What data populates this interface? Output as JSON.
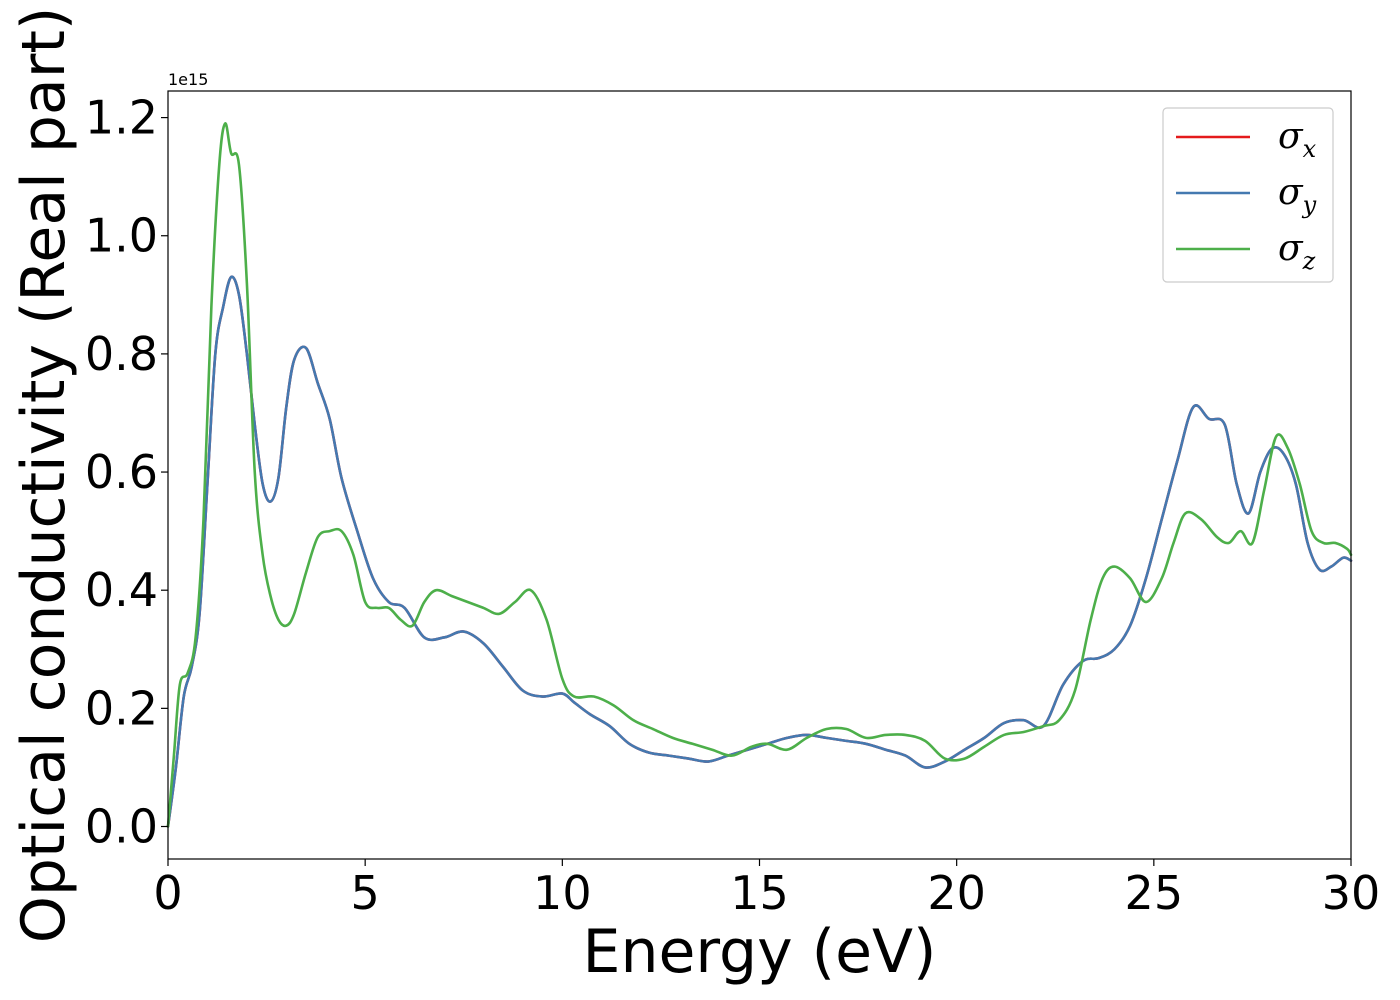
{
  "chart_data": {
    "type": "line",
    "title": "",
    "xlabel": "Energy (eV)",
    "ylabel": "Optical conductivity (Real part)",
    "y_offset_label": "1e15",
    "xlim": [
      0,
      30
    ],
    "ylim": [
      -0.055,
      1.245
    ],
    "xticks": [
      0,
      5,
      10,
      15,
      20,
      25,
      30
    ],
    "xtick_labels": [
      "0",
      "5",
      "10",
      "15",
      "20",
      "25",
      "30"
    ],
    "yticks": [
      0.0,
      0.2,
      0.4,
      0.6,
      0.8,
      1.0,
      1.2
    ],
    "ytick_labels": [
      "0.0",
      "0.2",
      "0.4",
      "0.6",
      "0.8",
      "1.0",
      "1.2"
    ],
    "grid": false,
    "legend_position": "top-right",
    "series": [
      {
        "name": "σx",
        "symbol": "σ",
        "subscript": "x",
        "color": "#e41a1c",
        "x": [
          0,
          0.2,
          0.4,
          0.6,
          0.8,
          1.0,
          1.2,
          1.4,
          1.6,
          1.8,
          2.0,
          2.2,
          2.4,
          2.6,
          2.8,
          3.0,
          3.2,
          3.5,
          3.8,
          4.1,
          4.4,
          4.8,
          5.2,
          5.6,
          6.0,
          6.5,
          7.0,
          7.5,
          8.0,
          8.5,
          9.0,
          9.5,
          10.0,
          10.3,
          10.7,
          11.2,
          11.7,
          12.2,
          12.7,
          13.2,
          13.7,
          14.2,
          14.7,
          15.2,
          15.7,
          16.2,
          16.7,
          17.2,
          17.7,
          18.2,
          18.7,
          19.2,
          19.7,
          20.2,
          20.7,
          21.2,
          21.7,
          22.2,
          22.7,
          23.2,
          23.6,
          24.0,
          24.4,
          24.8,
          25.2,
          25.6,
          26.0,
          26.4,
          26.8,
          27.1,
          27.4,
          27.7,
          28.0,
          28.3,
          28.6,
          28.9,
          29.2,
          29.5,
          29.8,
          30.0
        ],
        "values": [
          0.0,
          0.1,
          0.22,
          0.27,
          0.36,
          0.58,
          0.8,
          0.88,
          0.93,
          0.9,
          0.8,
          0.68,
          0.58,
          0.55,
          0.59,
          0.71,
          0.79,
          0.81,
          0.75,
          0.69,
          0.59,
          0.5,
          0.42,
          0.38,
          0.37,
          0.32,
          0.32,
          0.33,
          0.31,
          0.27,
          0.23,
          0.22,
          0.225,
          0.21,
          0.19,
          0.17,
          0.14,
          0.125,
          0.12,
          0.115,
          0.11,
          0.12,
          0.13,
          0.14,
          0.15,
          0.155,
          0.15,
          0.145,
          0.14,
          0.13,
          0.12,
          0.1,
          0.11,
          0.13,
          0.15,
          0.175,
          0.18,
          0.17,
          0.24,
          0.28,
          0.285,
          0.3,
          0.34,
          0.42,
          0.52,
          0.62,
          0.71,
          0.69,
          0.68,
          0.58,
          0.53,
          0.6,
          0.64,
          0.63,
          0.58,
          0.48,
          0.435,
          0.44,
          0.455,
          0.45
        ]
      },
      {
        "name": "σy",
        "symbol": "σ",
        "subscript": "y",
        "color": "#4479b0",
        "x": [
          0,
          0.2,
          0.4,
          0.6,
          0.8,
          1.0,
          1.2,
          1.4,
          1.6,
          1.8,
          2.0,
          2.2,
          2.4,
          2.6,
          2.8,
          3.0,
          3.2,
          3.5,
          3.8,
          4.1,
          4.4,
          4.8,
          5.2,
          5.6,
          6.0,
          6.5,
          7.0,
          7.5,
          8.0,
          8.5,
          9.0,
          9.5,
          10.0,
          10.3,
          10.7,
          11.2,
          11.7,
          12.2,
          12.7,
          13.2,
          13.7,
          14.2,
          14.7,
          15.2,
          15.7,
          16.2,
          16.7,
          17.2,
          17.7,
          18.2,
          18.7,
          19.2,
          19.7,
          20.2,
          20.7,
          21.2,
          21.7,
          22.2,
          22.7,
          23.2,
          23.6,
          24.0,
          24.4,
          24.8,
          25.2,
          25.6,
          26.0,
          26.4,
          26.8,
          27.1,
          27.4,
          27.7,
          28.0,
          28.3,
          28.6,
          28.9,
          29.2,
          29.5,
          29.8,
          30.0
        ],
        "values": [
          0.0,
          0.1,
          0.22,
          0.27,
          0.36,
          0.58,
          0.8,
          0.88,
          0.93,
          0.9,
          0.8,
          0.68,
          0.58,
          0.55,
          0.59,
          0.71,
          0.79,
          0.81,
          0.75,
          0.69,
          0.59,
          0.5,
          0.42,
          0.38,
          0.37,
          0.32,
          0.32,
          0.33,
          0.31,
          0.27,
          0.23,
          0.22,
          0.225,
          0.21,
          0.19,
          0.17,
          0.14,
          0.125,
          0.12,
          0.115,
          0.11,
          0.12,
          0.13,
          0.14,
          0.15,
          0.155,
          0.15,
          0.145,
          0.14,
          0.13,
          0.12,
          0.1,
          0.11,
          0.13,
          0.15,
          0.175,
          0.18,
          0.17,
          0.24,
          0.28,
          0.285,
          0.3,
          0.34,
          0.42,
          0.52,
          0.62,
          0.71,
          0.69,
          0.68,
          0.58,
          0.53,
          0.6,
          0.64,
          0.63,
          0.58,
          0.48,
          0.435,
          0.44,
          0.455,
          0.45
        ]
      },
      {
        "name": "σz",
        "symbol": "σ",
        "subscript": "z",
        "color": "#4daf4a",
        "x": [
          0,
          0.15,
          0.3,
          0.5,
          0.7,
          0.9,
          1.1,
          1.3,
          1.45,
          1.6,
          1.8,
          2.0,
          2.2,
          2.4,
          2.6,
          2.8,
          3.0,
          3.2,
          3.5,
          3.8,
          4.1,
          4.4,
          4.7,
          5.0,
          5.3,
          5.6,
          5.9,
          6.2,
          6.5,
          6.8,
          7.2,
          7.6,
          8.0,
          8.4,
          8.8,
          9.2,
          9.6,
          10.0,
          10.3,
          10.8,
          11.3,
          11.8,
          12.3,
          12.8,
          13.3,
          13.8,
          14.3,
          14.8,
          15.2,
          15.7,
          16.2,
          16.7,
          17.2,
          17.7,
          18.2,
          18.7,
          19.2,
          19.7,
          20.2,
          20.7,
          21.2,
          21.7,
          22.2,
          22.6,
          23.0,
          23.4,
          23.7,
          24.0,
          24.4,
          24.8,
          25.2,
          25.5,
          25.8,
          26.2,
          26.6,
          26.9,
          27.2,
          27.5,
          27.8,
          28.1,
          28.4,
          28.7,
          29.0,
          29.3,
          29.6,
          29.9,
          30.0
        ],
        "values": [
          0.0,
          0.12,
          0.24,
          0.26,
          0.32,
          0.52,
          0.88,
          1.12,
          1.19,
          1.14,
          1.12,
          0.92,
          0.6,
          0.46,
          0.39,
          0.35,
          0.34,
          0.36,
          0.43,
          0.49,
          0.5,
          0.5,
          0.46,
          0.38,
          0.37,
          0.37,
          0.35,
          0.34,
          0.38,
          0.4,
          0.39,
          0.38,
          0.37,
          0.36,
          0.38,
          0.4,
          0.35,
          0.25,
          0.22,
          0.22,
          0.205,
          0.18,
          0.165,
          0.15,
          0.14,
          0.13,
          0.12,
          0.135,
          0.14,
          0.13,
          0.15,
          0.165,
          0.165,
          0.15,
          0.155,
          0.155,
          0.145,
          0.115,
          0.115,
          0.135,
          0.155,
          0.16,
          0.17,
          0.18,
          0.23,
          0.35,
          0.42,
          0.44,
          0.42,
          0.38,
          0.42,
          0.48,
          0.53,
          0.52,
          0.49,
          0.48,
          0.5,
          0.48,
          0.57,
          0.66,
          0.64,
          0.58,
          0.5,
          0.48,
          0.48,
          0.47,
          0.46
        ]
      }
    ]
  }
}
